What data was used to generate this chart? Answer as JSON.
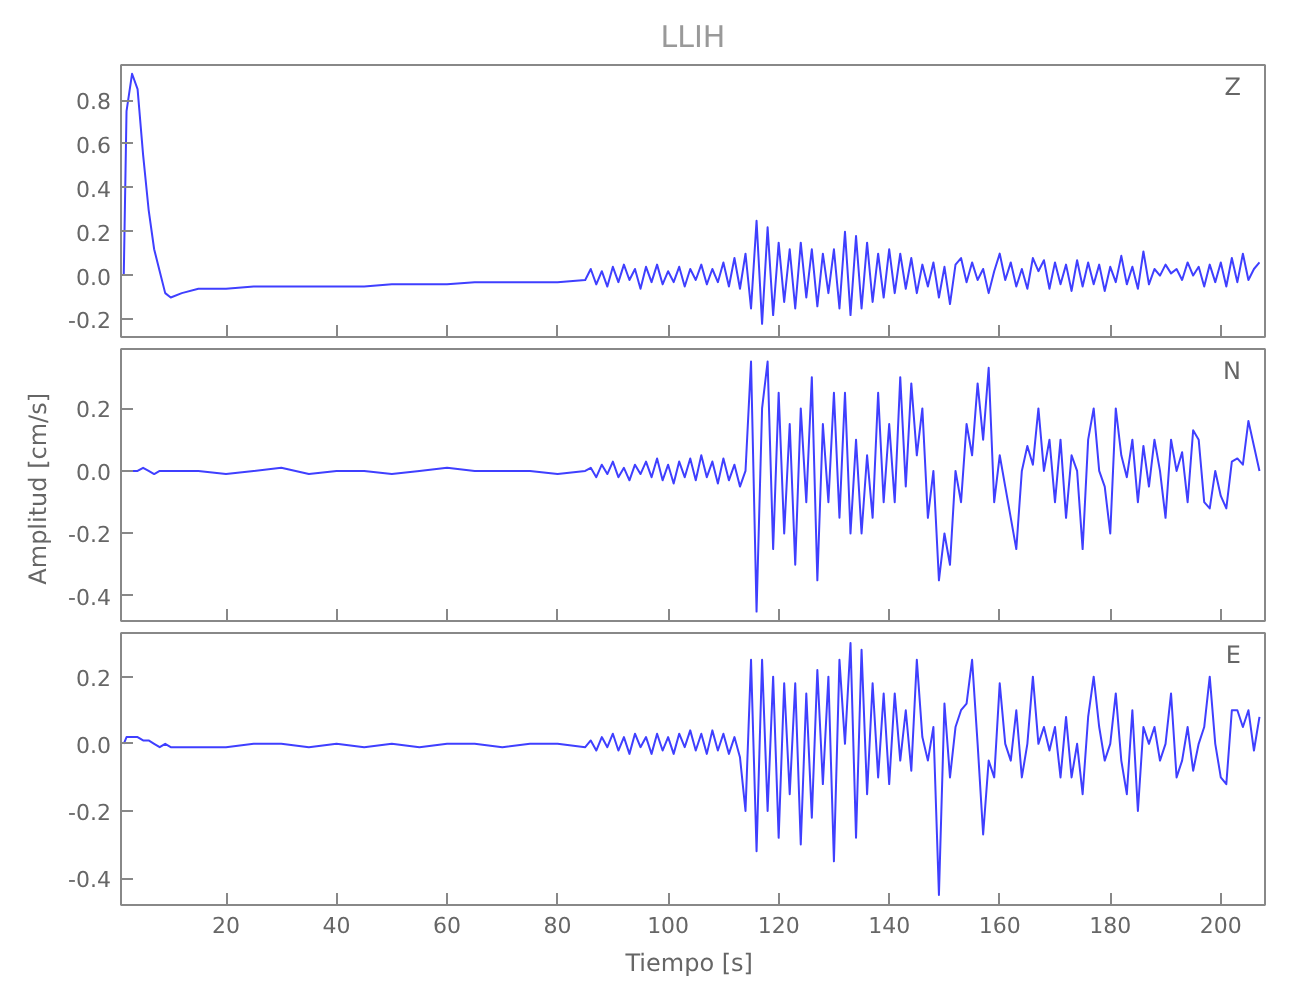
{
  "chart_data": [
    {
      "type": "line",
      "title": "LLIH",
      "annotations": [
        "Z"
      ],
      "tick_labels": "y",
      "grid": false,
      "xlim": [
        1,
        208
      ],
      "xticks": [
        20,
        40,
        60,
        80,
        100,
        120,
        140,
        160,
        180,
        200
      ],
      "ylim": [
        -0.28,
        0.96
      ],
      "yticks": [
        {
          "value": -0.2,
          "label": "-0.2"
        },
        {
          "value": 0,
          "label": "0.0"
        },
        {
          "value": 0.2,
          "label": "0.2"
        },
        {
          "value": 0.4,
          "label": "0.4"
        },
        {
          "value": 0.6,
          "label": "0.6"
        },
        {
          "value": 0.8,
          "label": "0.8"
        }
      ],
      "x": [
        1.5,
        2,
        3,
        4,
        5,
        6,
        7,
        8,
        9,
        10,
        12,
        15,
        20,
        25,
        30,
        35,
        40,
        45,
        50,
        55,
        60,
        65,
        70,
        75,
        80,
        85,
        86,
        87,
        88,
        89,
        90,
        91,
        92,
        93,
        94,
        95,
        96,
        97,
        98,
        99,
        100,
        101,
        102,
        103,
        104,
        105,
        106,
        107,
        108,
        109,
        110,
        111,
        112,
        113,
        114,
        115,
        116,
        117,
        118,
        119,
        120,
        121,
        122,
        123,
        124,
        125,
        126,
        127,
        128,
        129,
        130,
        131,
        132,
        133,
        134,
        135,
        136,
        137,
        138,
        139,
        140,
        141,
        142,
        143,
        144,
        145,
        146,
        147,
        148,
        149,
        150,
        151,
        152,
        153,
        154,
        155,
        156,
        157,
        158,
        159,
        160,
        161,
        162,
        163,
        164,
        165,
        166,
        167,
        168,
        169,
        170,
        171,
        172,
        173,
        174,
        175,
        176,
        177,
        178,
        179,
        180,
        181,
        182,
        183,
        184,
        185,
        186,
        187,
        188,
        189,
        190,
        191,
        192,
        193,
        194,
        195,
        196,
        197,
        198,
        199,
        200,
        201,
        202,
        203,
        204,
        205,
        206,
        207
      ],
      "series": [
        {
          "color": "#3f3fff",
          "values": [
            0.0,
            0.75,
            0.92,
            0.85,
            0.55,
            0.3,
            0.12,
            0.02,
            -0.08,
            -0.1,
            -0.08,
            -0.06,
            -0.06,
            -0.05,
            -0.05,
            -0.05,
            -0.05,
            -0.05,
            -0.04,
            -0.04,
            -0.04,
            -0.03,
            -0.03,
            -0.03,
            -0.03,
            -0.02,
            0.03,
            -0.04,
            0.02,
            -0.05,
            0.04,
            -0.03,
            0.05,
            -0.02,
            0.03,
            -0.06,
            0.04,
            -0.03,
            0.05,
            -0.04,
            0.02,
            -0.03,
            0.04,
            -0.05,
            0.03,
            -0.02,
            0.05,
            -0.04,
            0.03,
            -0.03,
            0.06,
            -0.05,
            0.08,
            -0.06,
            0.1,
            -0.15,
            0.25,
            -0.22,
            0.22,
            -0.18,
            0.15,
            -0.12,
            0.12,
            -0.15,
            0.15,
            -0.1,
            0.12,
            -0.14,
            0.1,
            -0.08,
            0.12,
            -0.15,
            0.2,
            -0.18,
            0.18,
            -0.15,
            0.15,
            -0.12,
            0.1,
            -0.1,
            0.12,
            -0.08,
            0.1,
            -0.06,
            0.08,
            -0.08,
            0.05,
            -0.05,
            0.06,
            -0.1,
            0.04,
            -0.13,
            0.05,
            0.08,
            -0.03,
            0.06,
            -0.02,
            0.03,
            -0.08,
            0.02,
            0.1,
            -0.02,
            0.06,
            -0.05,
            0.03,
            -0.06,
            0.08,
            0.02,
            0.07,
            -0.06,
            0.06,
            -0.04,
            0.05,
            -0.07,
            0.07,
            -0.05,
            0.06,
            -0.04,
            0.05,
            -0.07,
            0.04,
            -0.03,
            0.09,
            -0.04,
            0.04,
            -0.06,
            0.11,
            -0.04,
            0.03,
            0.0,
            0.05,
            0.01,
            0.03,
            -0.02,
            0.06,
            0.0,
            0.04,
            -0.05,
            0.05,
            -0.03,
            0.06,
            -0.05,
            0.08,
            -0.03,
            0.1,
            -0.02,
            0.03,
            0.06
          ]
        }
      ]
    },
    {
      "type": "line",
      "ylabel": "Amplitud  [cm/s]",
      "annotations": [
        "N"
      ],
      "tick_labels": "y",
      "grid": false,
      "xlim": [
        1,
        208
      ],
      "xticks": [
        20,
        40,
        60,
        80,
        100,
        120,
        140,
        160,
        180,
        200
      ],
      "ylim": [
        -0.48,
        0.39
      ],
      "yticks": [
        {
          "value": -0.4,
          "label": "-0.4"
        },
        {
          "value": -0.2,
          "label": "-0.2"
        },
        {
          "value": 0,
          "label": "0.0"
        },
        {
          "value": 0.2,
          "label": "0.2"
        }
      ],
      "x": [
        2,
        3,
        4,
        5,
        6,
        7,
        8,
        9,
        10,
        12,
        15,
        20,
        25,
        30,
        35,
        40,
        45,
        50,
        55,
        60,
        65,
        70,
        75,
        80,
        85,
        86,
        87,
        88,
        89,
        90,
        91,
        92,
        93,
        94,
        95,
        96,
        97,
        98,
        99,
        100,
        101,
        102,
        103,
        104,
        105,
        106,
        107,
        108,
        109,
        110,
        111,
        112,
        113,
        114,
        115,
        116,
        117,
        118,
        119,
        120,
        121,
        122,
        123,
        124,
        125,
        126,
        127,
        128,
        129,
        130,
        131,
        132,
        133,
        134,
        135,
        136,
        137,
        138,
        139,
        140,
        141,
        142,
        143,
        144,
        145,
        146,
        147,
        148,
        149,
        150,
        151,
        152,
        153,
        154,
        155,
        156,
        157,
        158,
        159,
        160,
        161,
        162,
        163,
        164,
        165,
        166,
        167,
        168,
        169,
        170,
        171,
        172,
        173,
        174,
        175,
        176,
        177,
        178,
        179,
        180,
        181,
        182,
        183,
        184,
        185,
        186,
        187,
        188,
        189,
        190,
        191,
        192,
        193,
        194,
        195,
        196,
        197,
        198,
        199,
        200,
        201,
        202,
        203,
        204,
        205,
        206,
        207
      ],
      "series": [
        {
          "color": "#3f3fff",
          "values": [
            0.0,
            0.0,
            0.0,
            0.01,
            0.0,
            -0.01,
            0.0,
            0.0,
            0.0,
            0.0,
            0.0,
            -0.01,
            0.0,
            0.01,
            -0.01,
            0.0,
            0.0,
            -0.01,
            0.0,
            0.01,
            0.0,
            0.0,
            0.0,
            -0.01,
            0.0,
            0.01,
            -0.02,
            0.02,
            -0.01,
            0.03,
            -0.02,
            0.01,
            -0.03,
            0.02,
            -0.01,
            0.03,
            -0.02,
            0.04,
            -0.03,
            0.02,
            -0.04,
            0.03,
            -0.02,
            0.04,
            -0.03,
            0.05,
            -0.02,
            0.03,
            -0.04,
            0.04,
            -0.03,
            0.02,
            -0.05,
            0.0,
            0.35,
            -0.45,
            0.2,
            0.35,
            -0.25,
            0.25,
            -0.2,
            0.15,
            -0.3,
            0.2,
            -0.1,
            0.3,
            -0.35,
            0.15,
            -0.1,
            0.25,
            -0.15,
            0.25,
            -0.2,
            0.1,
            -0.2,
            0.05,
            -0.15,
            0.25,
            -0.1,
            0.15,
            -0.1,
            0.3,
            -0.05,
            0.28,
            0.05,
            0.2,
            -0.15,
            0.0,
            -0.35,
            -0.2,
            -0.3,
            0.0,
            -0.1,
            0.15,
            0.05,
            0.28,
            0.1,
            0.33,
            -0.1,
            0.05,
            -0.05,
            -0.15,
            -0.25,
            0.0,
            0.08,
            0.02,
            0.2,
            0.0,
            0.1,
            -0.1,
            0.1,
            -0.15,
            0.05,
            0.0,
            -0.25,
            0.1,
            0.2,
            0.0,
            -0.05,
            -0.2,
            0.2,
            0.05,
            -0.02,
            0.1,
            -0.1,
            0.08,
            -0.05,
            0.1,
            0.0,
            -0.15,
            0.1,
            0.0,
            0.06,
            -0.1,
            0.13,
            0.1,
            -0.1,
            -0.12,
            0.0,
            -0.08,
            -0.12,
            0.03,
            0.04,
            0.02,
            0.16,
            0.08,
            0.0
          ]
        }
      ]
    },
    {
      "type": "line",
      "xlabel": "Tiempo  [s]",
      "annotations": [
        "E"
      ],
      "grid": false,
      "xlim": [
        1,
        208
      ],
      "xticks": [
        20,
        40,
        60,
        80,
        100,
        120,
        140,
        160,
        180,
        200
      ],
      "ylim": [
        -0.48,
        0.33
      ],
      "yticks": [
        {
          "value": -0.4,
          "label": "-0.4"
        },
        {
          "value": -0.2,
          "label": "-0.2"
        },
        {
          "value": 0,
          "label": "0.0"
        },
        {
          "value": 0.2,
          "label": "0.2"
        }
      ],
      "x": [
        1.5,
        2,
        3,
        4,
        5,
        6,
        7,
        8,
        9,
        10,
        12,
        15,
        20,
        25,
        30,
        35,
        40,
        45,
        50,
        55,
        60,
        65,
        70,
        75,
        80,
        85,
        86,
        87,
        88,
        89,
        90,
        91,
        92,
        93,
        94,
        95,
        96,
        97,
        98,
        99,
        100,
        101,
        102,
        103,
        104,
        105,
        106,
        107,
        108,
        109,
        110,
        111,
        112,
        113,
        114,
        115,
        116,
        117,
        118,
        119,
        120,
        121,
        122,
        123,
        124,
        125,
        126,
        127,
        128,
        129,
        130,
        131,
        132,
        133,
        134,
        135,
        136,
        137,
        138,
        139,
        140,
        141,
        142,
        143,
        144,
        145,
        146,
        147,
        148,
        149,
        150,
        151,
        152,
        153,
        154,
        155,
        156,
        157,
        158,
        159,
        160,
        161,
        162,
        163,
        164,
        165,
        166,
        167,
        168,
        169,
        170,
        171,
        172,
        173,
        174,
        175,
        176,
        177,
        178,
        179,
        180,
        181,
        182,
        183,
        184,
        185,
        186,
        187,
        188,
        189,
        190,
        191,
        192,
        193,
        194,
        195,
        196,
        197,
        198,
        199,
        200,
        201,
        202,
        203,
        204,
        205,
        206,
        207
      ],
      "series": [
        {
          "color": "#3f3fff",
          "values": [
            0.0,
            0.02,
            0.02,
            0.02,
            0.01,
            0.01,
            0.0,
            -0.01,
            0.0,
            -0.01,
            -0.01,
            -0.01,
            -0.01,
            0.0,
            0.0,
            -0.01,
            0.0,
            -0.01,
            0.0,
            -0.01,
            0.0,
            0.0,
            -0.01,
            0.0,
            0.0,
            -0.01,
            0.01,
            -0.02,
            0.02,
            -0.01,
            0.03,
            -0.02,
            0.02,
            -0.03,
            0.03,
            -0.01,
            0.02,
            -0.03,
            0.03,
            -0.02,
            0.02,
            -0.03,
            0.03,
            -0.01,
            0.04,
            -0.02,
            0.03,
            -0.03,
            0.04,
            -0.02,
            0.03,
            -0.03,
            0.02,
            -0.04,
            -0.2,
            0.25,
            -0.32,
            0.25,
            -0.2,
            0.2,
            -0.28,
            0.18,
            -0.15,
            0.18,
            -0.3,
            0.15,
            -0.22,
            0.22,
            -0.12,
            0.2,
            -0.35,
            0.25,
            0.0,
            0.3,
            -0.28,
            0.28,
            -0.15,
            0.18,
            -0.1,
            0.15,
            -0.12,
            0.15,
            -0.05,
            0.1,
            -0.08,
            0.25,
            0.02,
            -0.05,
            0.05,
            -0.45,
            0.12,
            -0.1,
            0.05,
            0.1,
            0.12,
            0.25,
            0.0,
            -0.27,
            -0.05,
            -0.1,
            0.18,
            0.0,
            -0.05,
            0.1,
            -0.1,
            0.0,
            0.2,
            0.0,
            0.05,
            -0.02,
            0.05,
            -0.1,
            0.08,
            -0.1,
            0.0,
            -0.15,
            0.08,
            0.2,
            0.05,
            -0.05,
            0.0,
            0.15,
            -0.05,
            -0.15,
            0.1,
            -0.2,
            0.05,
            0.0,
            0.05,
            -0.05,
            0.0,
            0.15,
            -0.1,
            -0.05,
            0.05,
            -0.08,
            0.0,
            0.05,
            0.2,
            0.0,
            -0.1,
            -0.12,
            0.1,
            0.1,
            0.05,
            0.1,
            -0.02,
            0.08
          ]
        }
      ]
    }
  ]
}
